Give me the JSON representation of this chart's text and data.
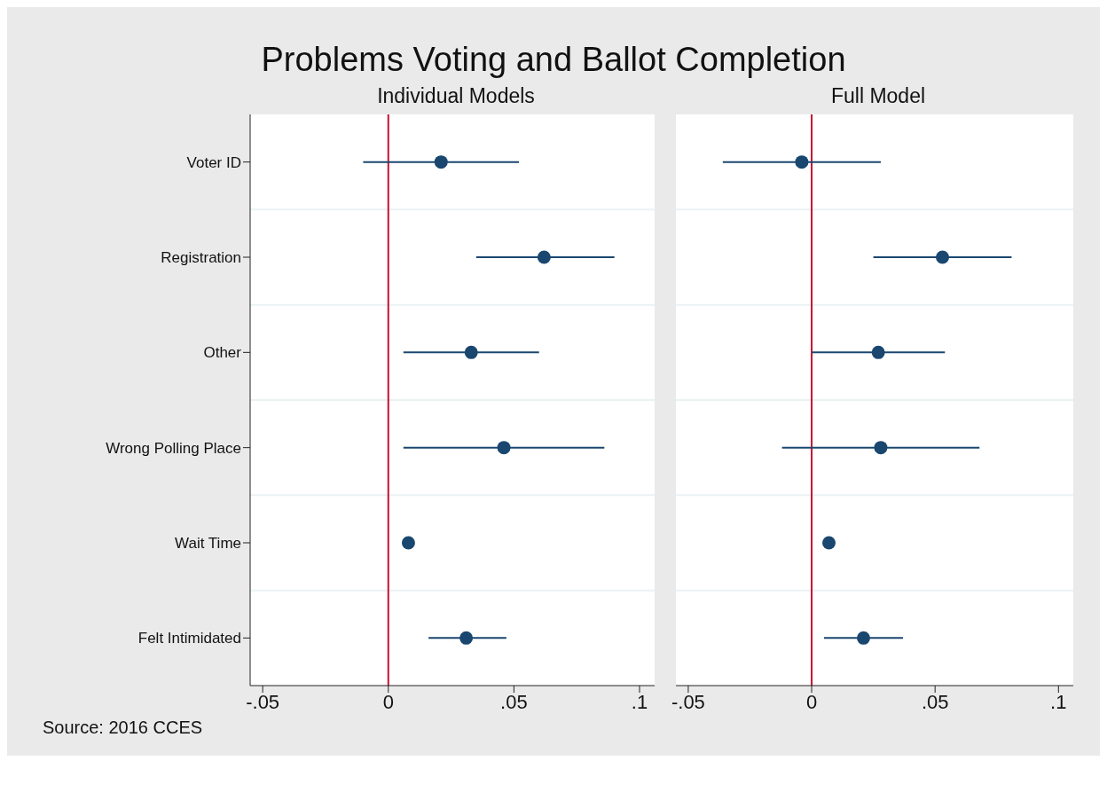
{
  "chart_data": [
    {
      "type": "scatter",
      "title": "Problems Voting and Ballot Completion",
      "subtitle": "Individual Models",
      "orientation": "horizontal",
      "categories": [
        "Voter ID",
        "Registration",
        "Other",
        "Wrong Polling Place",
        "Wait Time",
        "Felt Intimidated"
      ],
      "series": [
        {
          "color": "#1a476f",
          "values": [
            0.021,
            0.062,
            0.033,
            0.046,
            0.008,
            0.031
          ],
          "errors": [
            [
              -0.01,
              0.052
            ],
            [
              0.035,
              0.09
            ],
            [
              0.006,
              0.06
            ],
            [
              0.006,
              0.086
            ],
            null,
            [
              0.016,
              0.047
            ]
          ]
        }
      ],
      "xlim": [
        -0.055,
        0.106
      ],
      "xticks": [
        {
          "value": -0.05,
          "label": "-.05"
        },
        0,
        {
          "value": 0.05,
          "label": ".05"
        },
        {
          "value": 0.1,
          "label": ".1"
        }
      ],
      "ref_lines": [
        {
          "axis": "x",
          "value": 0,
          "color": "#c8102e"
        }
      ],
      "grid": "y",
      "marker": "circle",
      "legend": false,
      "annotations": [
        "Source: 2016 CCES"
      ]
    },
    {
      "type": "scatter",
      "subtitle": "Full Model",
      "orientation": "horizontal",
      "categories": [
        null,
        null,
        null,
        null,
        null,
        null
      ],
      "series": [
        {
          "color": "#1a476f",
          "values": [
            -0.004,
            0.053,
            0.027,
            0.028,
            0.007,
            0.021
          ],
          "errors": [
            [
              -0.036,
              0.028
            ],
            [
              0.025,
              0.081
            ],
            [
              0.0,
              0.054
            ],
            [
              -0.012,
              0.068
            ],
            null,
            [
              0.005,
              0.037
            ]
          ]
        }
      ],
      "xlim": [
        -0.055,
        0.106
      ],
      "xticks": [
        {
          "value": -0.05,
          "label": "-.05"
        },
        0,
        {
          "value": 0.05,
          "label": ".05"
        },
        {
          "value": 0.1,
          "label": ".1"
        }
      ],
      "ref_lines": [
        {
          "axis": "x",
          "value": 0,
          "color": "#c8102e"
        }
      ],
      "grid": "y",
      "marker": "circle",
      "legend": false,
      "tick_labels": "x"
    }
  ]
}
